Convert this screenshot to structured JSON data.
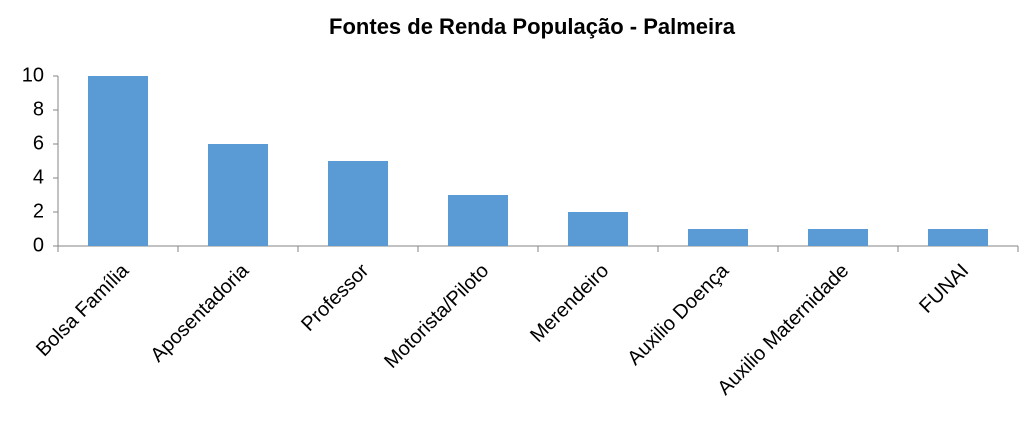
{
  "chart_data": {
    "type": "bar",
    "title": "Fontes de Renda População - Palmeira",
    "categories": [
      "Bolsa Família",
      "Aposentadoria",
      "Professor",
      "Motorista/Piloto",
      "Merendeiro",
      "Auxilio Doença",
      "Auxilio Maternidade",
      "FUNAI"
    ],
    "values": [
      10,
      6,
      5,
      3,
      2,
      1,
      1,
      1
    ],
    "color": "#5b9bd5",
    "ylim": [
      0,
      10
    ],
    "yticks": [
      0,
      2,
      4,
      6,
      8,
      10
    ],
    "grid": false
  }
}
